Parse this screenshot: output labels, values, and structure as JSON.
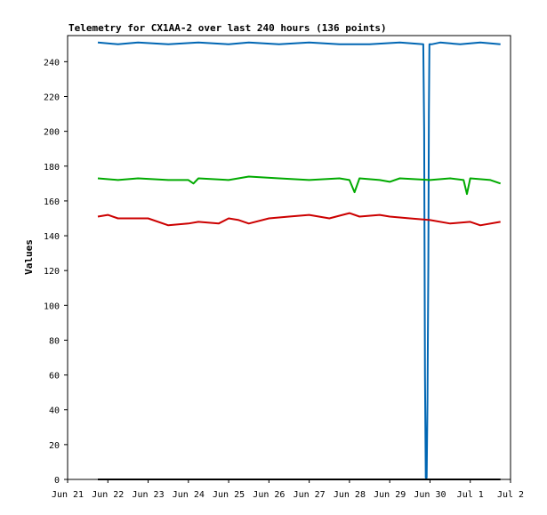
{
  "chart_data": {
    "type": "line",
    "title": "Telemetry for CX1AA-2 over last 240 hours (136 points)",
    "xlabel": "",
    "ylabel": "Values",
    "xlim": [
      "Jun 21",
      "Jul 2"
    ],
    "ylim": [
      0,
      255
    ],
    "grid": false,
    "legend": "none",
    "x_ticks": [
      "Jun 21",
      "Jun 22",
      "Jun 23",
      "Jun 24",
      "Jun 25",
      "Jun 26",
      "Jun 27",
      "Jun 28",
      "Jun 29",
      "Jun 30",
      "Jul 1",
      "Jul 2"
    ],
    "y_ticks": [
      0,
      20,
      40,
      60,
      80,
      100,
      120,
      140,
      160,
      180,
      200,
      220,
      240
    ],
    "series": [
      {
        "color": "#0066b3",
        "points": [
          [
            "Jun 21 18:00",
            251
          ],
          [
            "Jun 22 06:00",
            250
          ],
          [
            "Jun 22 18:00",
            251
          ],
          [
            "Jun 23 12:00",
            250
          ],
          [
            "Jun 24 06:00",
            251
          ],
          [
            "Jun 25 00:00",
            250
          ],
          [
            "Jun 25 12:00",
            251
          ],
          [
            "Jun 26 06:00",
            250
          ],
          [
            "Jun 27 00:00",
            251
          ],
          [
            "Jun 27 18:00",
            250
          ],
          [
            "Jun 28 12:00",
            250
          ],
          [
            "Jun 29 06:00",
            251
          ],
          [
            "Jun 29 20:00",
            250
          ],
          [
            "Jun 29 20:30",
            200
          ],
          [
            "Jun 29 21:00",
            60
          ],
          [
            "Jun 29 21:30",
            1
          ],
          [
            "Jun 29 22:00",
            1
          ],
          [
            "Jun 29 22:30",
            45
          ],
          [
            "Jun 29 23:00",
            125
          ],
          [
            "Jun 29 23:20",
            210
          ],
          [
            "Jun 29 23:40",
            250
          ],
          [
            "Jun 30 01:00",
            250
          ],
          [
            "Jun 30 06:00",
            251
          ],
          [
            "Jun 30 18:00",
            250
          ],
          [
            "Jul 1 06:00",
            251
          ],
          [
            "Jul 1 18:00",
            250
          ]
        ]
      },
      {
        "color": "#00aa00",
        "points": [
          [
            "Jun 21 18:00",
            173
          ],
          [
            "Jun 22 06:00",
            172
          ],
          [
            "Jun 22 18:00",
            173
          ],
          [
            "Jun 23 12:00",
            172
          ],
          [
            "Jun 24 00:00",
            172
          ],
          [
            "Jun 24 03:00",
            170
          ],
          [
            "Jun 24 06:00",
            173
          ],
          [
            "Jun 25 00:00",
            172
          ],
          [
            "Jun 25 12:00",
            174
          ],
          [
            "Jun 26 06:00",
            173
          ],
          [
            "Jun 27 00:00",
            172
          ],
          [
            "Jun 27 18:00",
            173
          ],
          [
            "Jun 28 00:00",
            172
          ],
          [
            "Jun 28 03:00",
            165
          ],
          [
            "Jun 28 06:00",
            173
          ],
          [
            "Jun 28 18:00",
            172
          ],
          [
            "Jun 29 00:00",
            171
          ],
          [
            "Jun 29 06:00",
            173
          ],
          [
            "Jun 30 00:00",
            172
          ],
          [
            "Jun 30 12:00",
            173
          ],
          [
            "Jun 30 20:00",
            172
          ],
          [
            "Jun 30 22:00",
            164
          ],
          [
            "Jul 1 00:00",
            173
          ],
          [
            "Jul 1 12:00",
            172
          ],
          [
            "Jul 1 18:00",
            170
          ]
        ]
      },
      {
        "color": "#cc0000",
        "points": [
          [
            "Jun 21 18:00",
            151
          ],
          [
            "Jun 22 00:00",
            152
          ],
          [
            "Jun 22 06:00",
            150
          ],
          [
            "Jun 23 00:00",
            150
          ],
          [
            "Jun 23 12:00",
            146
          ],
          [
            "Jun 24 00:00",
            147
          ],
          [
            "Jun 24 06:00",
            148
          ],
          [
            "Jun 24 18:00",
            147
          ],
          [
            "Jun 25 00:00",
            150
          ],
          [
            "Jun 25 06:00",
            149
          ],
          [
            "Jun 25 12:00",
            147
          ],
          [
            "Jun 26 00:00",
            150
          ],
          [
            "Jun 26 12:00",
            151
          ],
          [
            "Jun 27 00:00",
            152
          ],
          [
            "Jun 27 12:00",
            150
          ],
          [
            "Jun 28 00:00",
            153
          ],
          [
            "Jun 28 06:00",
            151
          ],
          [
            "Jun 28 18:00",
            152
          ],
          [
            "Jun 29 00:00",
            151
          ],
          [
            "Jun 29 12:00",
            150
          ],
          [
            "Jun 30 00:00",
            149
          ],
          [
            "Jun 30 12:00",
            147
          ],
          [
            "Jul 1 00:00",
            148
          ],
          [
            "Jul 1 06:00",
            146
          ],
          [
            "Jul 1 18:00",
            148
          ]
        ]
      },
      {
        "color": "#000000",
        "points": [
          [
            "Jun 21 18:00",
            0
          ],
          [
            "Jul 1 18:00",
            0
          ]
        ]
      }
    ]
  }
}
